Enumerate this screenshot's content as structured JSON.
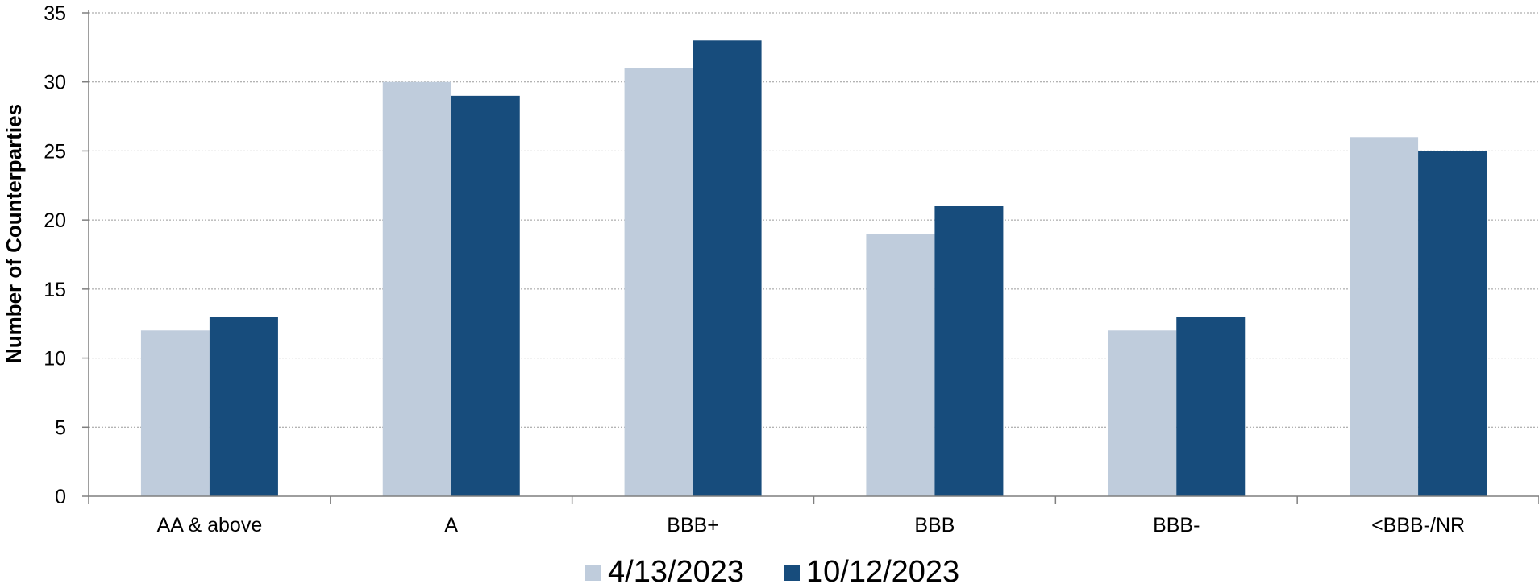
{
  "chart_data": {
    "type": "bar",
    "categories": [
      "AA & above",
      "A",
      "BBB+",
      "BBB",
      "BBB-",
      "<BBB-/NR"
    ],
    "series": [
      {
        "name": "4/13/2023",
        "values": [
          12,
          30,
          31,
          19,
          12,
          26
        ],
        "color": "#bfccdc"
      },
      {
        "name": "10/12/2023",
        "values": [
          13,
          29,
          33,
          21,
          13,
          25
        ],
        "color": "#174c7c"
      }
    ],
    "ylabel": "Number of Counterparties",
    "xlabel": "",
    "ylim": [
      0,
      35
    ],
    "yticks": [
      "0",
      "5",
      "10",
      "15",
      "20",
      "25",
      "30",
      "35"
    ],
    "grid": true,
    "legend_position": "bottom-center"
  }
}
